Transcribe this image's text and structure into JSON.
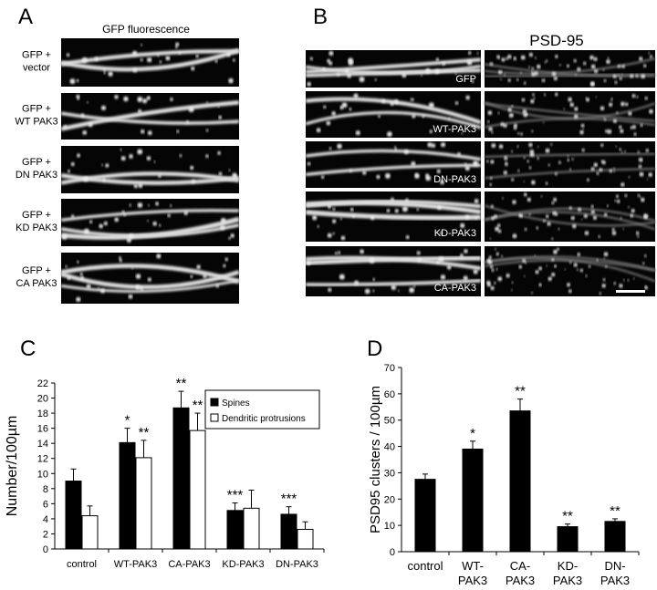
{
  "panel_a": {
    "label": "A",
    "title": "GFP fluorescence",
    "rows": [
      [
        "GFP +",
        "vector"
      ],
      [
        "GFP +",
        "WT PAK3"
      ],
      [
        "GFP +",
        "DN PAK3"
      ],
      [
        "GFP +",
        "KD PAK3"
      ],
      [
        "GFP +",
        "CA PAK3"
      ]
    ]
  },
  "panel_b": {
    "label": "B",
    "title": "PSD-95",
    "rows": [
      "GFP",
      "WT-PAK3",
      "DN-PAK3",
      "KD-PAK3",
      "CA-PAK3"
    ]
  },
  "chart_data": [
    {
      "type": "bar",
      "label": "C",
      "ylabel": "Number/100µm",
      "categories": [
        "control",
        "WT-PAK3",
        "CA-PAK3",
        "KD-PAK3",
        "DN-PAK3"
      ],
      "series": [
        {
          "name": "Spines",
          "color": "#000000",
          "values": [
            9,
            14.1,
            18.7,
            5.1,
            4.6
          ],
          "errors": [
            1.6,
            1.9,
            2.2,
            1.0,
            1.0
          ],
          "annotations": [
            null,
            "*",
            "**",
            "***",
            "***"
          ]
        },
        {
          "name": "Dendritic protrusions",
          "color": "#ffffff",
          "values": [
            4.4,
            12.1,
            15.7,
            5.4,
            2.6
          ],
          "errors": [
            1.3,
            2.3,
            2.3,
            2.4,
            1.0
          ],
          "annotations": [
            null,
            "**",
            "**",
            null,
            null
          ]
        }
      ],
      "ylim": [
        0,
        22
      ],
      "yticks": [
        0,
        2,
        4,
        6,
        8,
        10,
        12,
        14,
        16,
        18,
        20,
        22
      ],
      "legend": "upper right"
    },
    {
      "type": "bar",
      "label": "D",
      "ylabel": "PSD95 clusters / 100µm",
      "categories": [
        [
          "control"
        ],
        [
          "WT-",
          "PAK3"
        ],
        [
          "CA-",
          "PAK3"
        ],
        [
          "KD-",
          "PAK3"
        ],
        [
          "DN-",
          "PAK3"
        ]
      ],
      "values": [
        27.5,
        39,
        53.5,
        9.5,
        11.5
      ],
      "errors": [
        2,
        3,
        4.5,
        1,
        1
      ],
      "annotations": [
        null,
        "*",
        "**",
        "**",
        "**"
      ],
      "color": "#000000",
      "ylim": [
        0,
        70
      ],
      "yticks": [
        0,
        10,
        20,
        30,
        40,
        50,
        60,
        70
      ]
    }
  ]
}
